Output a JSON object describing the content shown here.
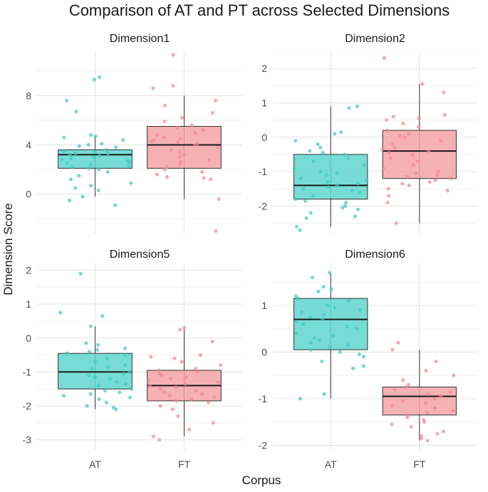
{
  "chart_data": {
    "type": "boxplot",
    "title": "Comparison of AT and PT across Selected Dimensions",
    "xlabel": "Corpus",
    "ylabel": "Dimension Score",
    "categories": [
      "AT",
      "FT"
    ],
    "colors": {
      "AT": "#5fd6cf",
      "FT": "#f4a3a7",
      "AT_point": "#3ec9c0",
      "FT_point": "#f08a90"
    },
    "panels": [
      {
        "name": "Dimension1",
        "ylim": [
          -3.2,
          11.6
        ],
        "yticks": [
          0,
          4,
          8
        ],
        "boxes": {
          "AT": {
            "min": -0.2,
            "q1": 2.1,
            "median": 3.2,
            "q3": 3.6,
            "max": 4.7
          },
          "FT": {
            "min": -0.4,
            "q1": 2.1,
            "median": 4.0,
            "q3": 5.5,
            "max": 8.0
          }
        },
        "points": {
          "AT": [
            9.3,
            9.5,
            7.6,
            6.7,
            4.8,
            4.7,
            4.6,
            4.4,
            4.1,
            4.0,
            3.9,
            3.8,
            3.6,
            3.5,
            3.4,
            3.3,
            3.3,
            3.2,
            3.1,
            3.0,
            2.9,
            2.8,
            2.7,
            2.6,
            2.5,
            2.4,
            2.3,
            2.2,
            2.1,
            2.0,
            1.8,
            1.5,
            1.2,
            0.9,
            0.7,
            0.5,
            0.3,
            -0.2,
            -0.5,
            -0.9
          ],
          "FT": [
            11.3,
            8.8,
            8.6,
            7.6,
            7.2,
            6.6,
            6.2,
            5.9,
            5.6,
            5.4,
            5.2,
            5.0,
            4.8,
            4.6,
            4.5,
            4.4,
            4.3,
            4.2,
            4.1,
            4.0,
            3.8,
            3.6,
            3.4,
            3.2,
            3.0,
            2.8,
            2.6,
            2.4,
            2.2,
            2.0,
            1.8,
            1.6,
            1.4,
            1.3,
            1.2,
            -0.4,
            -3.0
          ]
        }
      },
      {
        "name": "Dimension2",
        "ylim": [
          -2.8,
          2.5
        ],
        "yticks": [
          -2,
          -1,
          0,
          1,
          2
        ],
        "boxes": {
          "AT": {
            "min": -2.6,
            "q1": -1.8,
            "median": -1.4,
            "q3": -0.5,
            "max": 0.9
          },
          "FT": {
            "min": -2.5,
            "q1": -1.2,
            "median": -0.4,
            "q3": 0.2,
            "max": 1.55
          }
        },
        "points": {
          "AT": [
            0.9,
            0.85,
            0.15,
            0.1,
            -0.1,
            -0.2,
            -0.3,
            -0.4,
            -0.45,
            -0.5,
            -0.6,
            -0.7,
            -0.8,
            -0.9,
            -1.0,
            -1.05,
            -1.1,
            -1.2,
            -1.25,
            -1.3,
            -1.35,
            -1.4,
            -1.45,
            -1.5,
            -1.55,
            -1.6,
            -1.7,
            -1.8,
            -1.85,
            -1.9,
            -2.0,
            -2.05,
            -2.1,
            -2.2,
            -2.3,
            -2.35,
            -2.6,
            -2.7
          ],
          "FT": [
            2.3,
            1.55,
            1.3,
            0.65,
            0.6,
            0.55,
            0.5,
            0.4,
            0.3,
            0.2,
            0.1,
            0.05,
            0.0,
            -0.1,
            -0.2,
            -0.3,
            -0.35,
            -0.4,
            -0.45,
            -0.5,
            -0.6,
            -0.7,
            -0.8,
            -0.9,
            -1.0,
            -1.05,
            -1.1,
            -1.15,
            -1.2,
            -1.25,
            -1.3,
            -1.35,
            -1.4,
            -1.5,
            -1.55,
            -1.7,
            -1.9,
            -2.5
          ]
        }
      },
      {
        "name": "Dimension5",
        "ylim": [
          -3.3,
          2.2
        ],
        "yticks": [
          -3,
          -2,
          -1,
          0,
          1,
          2
        ],
        "boxes": {
          "AT": {
            "min": -2.1,
            "q1": -1.5,
            "median": -1.0,
            "q3": -0.45,
            "max": 0.35
          },
          "FT": {
            "min": -2.9,
            "q1": -1.85,
            "median": -1.4,
            "q3": -0.95,
            "max": 0.25
          }
        },
        "points": {
          "AT": [
            1.9,
            0.75,
            0.65,
            0.35,
            -0.15,
            -0.2,
            -0.3,
            -0.35,
            -0.4,
            -0.45,
            -0.5,
            -0.6,
            -0.7,
            -0.8,
            -0.85,
            -0.9,
            -1.0,
            -1.05,
            -1.1,
            -1.15,
            -1.2,
            -1.3,
            -1.35,
            -1.4,
            -1.5,
            -1.55,
            -1.6,
            -1.65,
            -1.7,
            -1.75,
            -1.8,
            -1.9,
            -2.0,
            -2.05,
            -2.1
          ],
          "FT": [
            0.3,
            0.25,
            -0.1,
            -0.5,
            -0.55,
            -0.6,
            -0.7,
            -0.8,
            -0.9,
            -0.95,
            -1.0,
            -1.05,
            -1.1,
            -1.15,
            -1.2,
            -1.25,
            -1.3,
            -1.35,
            -1.4,
            -1.45,
            -1.5,
            -1.55,
            -1.6,
            -1.65,
            -1.7,
            -1.75,
            -1.8,
            -1.85,
            -1.9,
            -2.0,
            -2.1,
            -2.3,
            -2.5,
            -2.7,
            -2.9,
            -3.0
          ]
        }
      },
      {
        "name": "Dimension6",
        "ylim": [
          -2.1,
          1.9
        ],
        "yticks": [
          -2,
          -1,
          0,
          1
        ],
        "boxes": {
          "AT": {
            "min": -1.0,
            "q1": 0.05,
            "median": 0.7,
            "q3": 1.15,
            "max": 1.7
          },
          "FT": {
            "min": -1.9,
            "q1": -1.35,
            "median": -0.95,
            "q3": -0.75,
            "max": 0.05
          }
        },
        "points": {
          "AT": [
            1.7,
            1.6,
            1.4,
            1.35,
            1.3,
            1.2,
            1.15,
            1.1,
            1.0,
            0.95,
            0.9,
            0.85,
            0.8,
            0.75,
            0.7,
            0.65,
            0.6,
            0.55,
            0.5,
            0.4,
            0.35,
            0.3,
            0.25,
            0.2,
            0.15,
            0.1,
            0.05,
            0.0,
            -0.05,
            -0.1,
            -0.2,
            -0.3,
            -0.35,
            -0.9,
            -1.0
          ],
          "FT": [
            0.2,
            0.05,
            -0.2,
            -0.4,
            -0.5,
            -0.6,
            -0.7,
            -0.75,
            -0.8,
            -0.85,
            -0.9,
            -0.95,
            -1.0,
            -1.05,
            -1.1,
            -1.15,
            -1.2,
            -1.25,
            -1.3,
            -1.35,
            -1.4,
            -1.45,
            -1.5,
            -1.55,
            -1.6,
            -1.7,
            -1.75,
            -1.8,
            -1.85,
            -1.9
          ]
        }
      }
    ]
  }
}
